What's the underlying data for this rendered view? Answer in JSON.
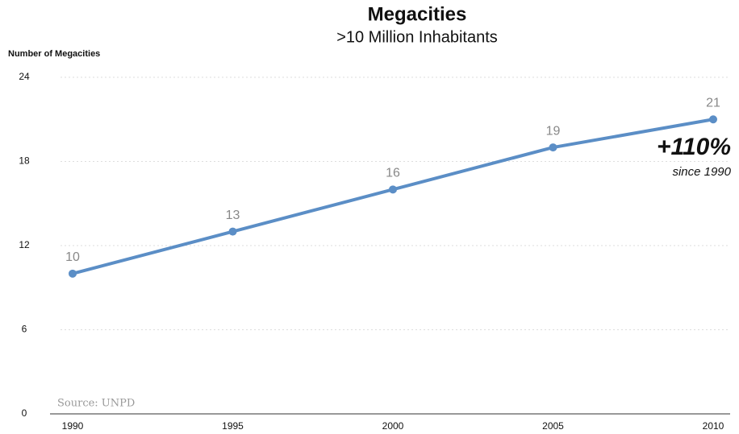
{
  "chart_data": {
    "type": "line",
    "title": "Megacities",
    "subtitle": ">10 Million Inhabitants",
    "y_label": "Number of Megacities",
    "x": [
      1990,
      1995,
      2000,
      2005,
      2010
    ],
    "values": [
      10,
      13,
      16,
      19,
      21
    ],
    "color": "#5b8ec6",
    "xlim": [
      1990,
      2010
    ],
    "xticks": [
      1990,
      1995,
      2000,
      2005,
      2010
    ],
    "ylim": [
      0,
      24
    ],
    "yticks": [
      0,
      6,
      12,
      18,
      24
    ],
    "grid": true,
    "annotation": "+110%",
    "annotation_note": "since 1990",
    "source": "Source: UNPD"
  }
}
